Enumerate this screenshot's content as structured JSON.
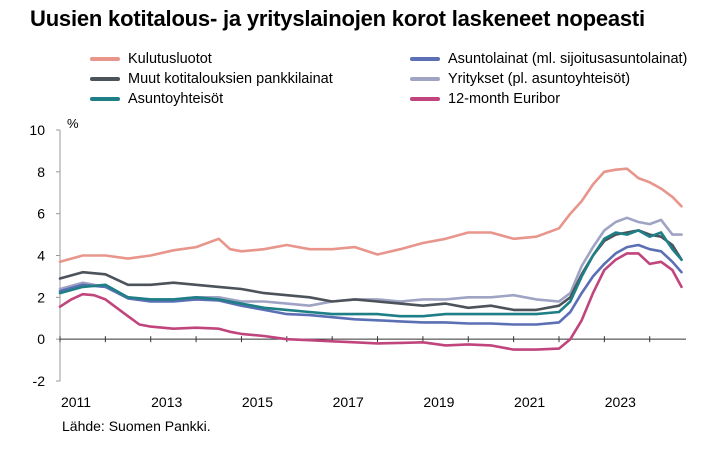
{
  "title": "Uusien kotitalous- ja yrityslainojen korot laskeneet nopeasti",
  "source": "Lähde: Suomen Pankki.",
  "chart_data": {
    "type": "line",
    "ylabel": "%",
    "ylim": [
      -2,
      10
    ],
    "yticks": [
      -2,
      0,
      2,
      4,
      6,
      8,
      10
    ],
    "xlim": [
      2011.0,
      2024.8
    ],
    "xticks": [
      "2011",
      "2013",
      "2015",
      "2017",
      "2019",
      "2021",
      "2023"
    ],
    "grid": false,
    "legend_position": "top",
    "series": [
      {
        "name": "Kulutusluotot",
        "color": "#e8958c",
        "points": [
          [
            2011.0,
            3.7
          ],
          [
            2011.5,
            4.0
          ],
          [
            2012.0,
            4.0
          ],
          [
            2012.5,
            3.85
          ],
          [
            2013.0,
            4.0
          ],
          [
            2013.5,
            4.25
          ],
          [
            2014.0,
            4.4
          ],
          [
            2014.5,
            4.8
          ],
          [
            2014.75,
            4.3
          ],
          [
            2015.0,
            4.2
          ],
          [
            2015.5,
            4.3
          ],
          [
            2016.0,
            4.5
          ],
          [
            2016.5,
            4.3
          ],
          [
            2017.0,
            4.3
          ],
          [
            2017.5,
            4.4
          ],
          [
            2018.0,
            4.05
          ],
          [
            2018.5,
            4.3
          ],
          [
            2019.0,
            4.6
          ],
          [
            2019.5,
            4.8
          ],
          [
            2020.0,
            5.1
          ],
          [
            2020.5,
            5.1
          ],
          [
            2021.0,
            4.8
          ],
          [
            2021.5,
            4.9
          ],
          [
            2022.0,
            5.3
          ],
          [
            2022.25,
            6.0
          ],
          [
            2022.5,
            6.6
          ],
          [
            2022.75,
            7.4
          ],
          [
            2023.0,
            8.0
          ],
          [
            2023.25,
            8.1
          ],
          [
            2023.5,
            8.15
          ],
          [
            2023.75,
            7.7
          ],
          [
            2024.0,
            7.5
          ],
          [
            2024.25,
            7.2
          ],
          [
            2024.5,
            6.8
          ],
          [
            2024.7,
            6.35
          ]
        ]
      },
      {
        "name": "Asuntolainat (ml. sijoitusasuntolainat)",
        "color": "#5b6fb5",
        "points": [
          [
            2011.0,
            2.3
          ],
          [
            2011.5,
            2.6
          ],
          [
            2012.0,
            2.5
          ],
          [
            2012.5,
            1.95
          ],
          [
            2013.0,
            1.8
          ],
          [
            2013.5,
            1.8
          ],
          [
            2014.0,
            1.9
          ],
          [
            2014.5,
            1.85
          ],
          [
            2015.0,
            1.6
          ],
          [
            2015.5,
            1.4
          ],
          [
            2016.0,
            1.2
          ],
          [
            2016.5,
            1.15
          ],
          [
            2017.0,
            1.05
          ],
          [
            2017.5,
            0.95
          ],
          [
            2018.0,
            0.9
          ],
          [
            2018.5,
            0.85
          ],
          [
            2019.0,
            0.8
          ],
          [
            2019.5,
            0.8
          ],
          [
            2020.0,
            0.75
          ],
          [
            2020.5,
            0.75
          ],
          [
            2021.0,
            0.7
          ],
          [
            2021.5,
            0.7
          ],
          [
            2022.0,
            0.8
          ],
          [
            2022.25,
            1.3
          ],
          [
            2022.5,
            2.2
          ],
          [
            2022.75,
            3.0
          ],
          [
            2023.0,
            3.6
          ],
          [
            2023.25,
            4.1
          ],
          [
            2023.5,
            4.4
          ],
          [
            2023.75,
            4.5
          ],
          [
            2024.0,
            4.3
          ],
          [
            2024.25,
            4.2
          ],
          [
            2024.5,
            3.7
          ],
          [
            2024.7,
            3.2
          ]
        ]
      },
      {
        "name": "Muut kotitalouksien pankkilainat",
        "color": "#4d535a",
        "points": [
          [
            2011.0,
            2.9
          ],
          [
            2011.5,
            3.2
          ],
          [
            2012.0,
            3.1
          ],
          [
            2012.5,
            2.6
          ],
          [
            2013.0,
            2.6
          ],
          [
            2013.5,
            2.7
          ],
          [
            2014.0,
            2.6
          ],
          [
            2014.5,
            2.5
          ],
          [
            2015.0,
            2.4
          ],
          [
            2015.5,
            2.2
          ],
          [
            2016.0,
            2.1
          ],
          [
            2016.5,
            2.0
          ],
          [
            2017.0,
            1.8
          ],
          [
            2017.5,
            1.9
          ],
          [
            2018.0,
            1.8
          ],
          [
            2018.5,
            1.7
          ],
          [
            2019.0,
            1.6
          ],
          [
            2019.5,
            1.7
          ],
          [
            2020.0,
            1.5
          ],
          [
            2020.5,
            1.6
          ],
          [
            2021.0,
            1.4
          ],
          [
            2021.5,
            1.4
          ],
          [
            2022.0,
            1.6
          ],
          [
            2022.25,
            2.0
          ],
          [
            2022.5,
            3.1
          ],
          [
            2022.75,
            4.0
          ],
          [
            2023.0,
            4.7
          ],
          [
            2023.25,
            5.0
          ],
          [
            2023.5,
            5.1
          ],
          [
            2023.75,
            5.2
          ],
          [
            2024.0,
            5.0
          ],
          [
            2024.25,
            4.9
          ],
          [
            2024.5,
            4.5
          ],
          [
            2024.7,
            3.8
          ]
        ]
      },
      {
        "name": "Yritykset (pl. asuntoyhteisöt)",
        "color": "#9fa3c4",
        "points": [
          [
            2011.0,
            2.4
          ],
          [
            2011.5,
            2.7
          ],
          [
            2012.0,
            2.5
          ],
          [
            2012.5,
            2.0
          ],
          [
            2013.0,
            1.9
          ],
          [
            2013.5,
            1.9
          ],
          [
            2014.0,
            2.0
          ],
          [
            2014.5,
            2.0
          ],
          [
            2015.0,
            1.8
          ],
          [
            2015.5,
            1.8
          ],
          [
            2016.0,
            1.7
          ],
          [
            2016.5,
            1.6
          ],
          [
            2017.0,
            1.8
          ],
          [
            2017.5,
            1.9
          ],
          [
            2018.0,
            1.9
          ],
          [
            2018.5,
            1.8
          ],
          [
            2019.0,
            1.9
          ],
          [
            2019.5,
            1.9
          ],
          [
            2020.0,
            2.0
          ],
          [
            2020.5,
            2.0
          ],
          [
            2021.0,
            2.1
          ],
          [
            2021.5,
            1.9
          ],
          [
            2022.0,
            1.8
          ],
          [
            2022.25,
            2.2
          ],
          [
            2022.5,
            3.5
          ],
          [
            2022.75,
            4.4
          ],
          [
            2023.0,
            5.2
          ],
          [
            2023.25,
            5.6
          ],
          [
            2023.5,
            5.8
          ],
          [
            2023.75,
            5.6
          ],
          [
            2024.0,
            5.5
          ],
          [
            2024.25,
            5.7
          ],
          [
            2024.5,
            5.0
          ],
          [
            2024.7,
            5.0
          ]
        ]
      },
      {
        "name": "Asuntoyhteisöt",
        "color": "#1e7f86",
        "points": [
          [
            2011.0,
            2.2
          ],
          [
            2011.5,
            2.5
          ],
          [
            2012.0,
            2.6
          ],
          [
            2012.5,
            2.0
          ],
          [
            2013.0,
            1.9
          ],
          [
            2013.5,
            1.9
          ],
          [
            2014.0,
            2.0
          ],
          [
            2014.5,
            1.9
          ],
          [
            2015.0,
            1.7
          ],
          [
            2015.5,
            1.5
          ],
          [
            2016.0,
            1.4
          ],
          [
            2016.5,
            1.3
          ],
          [
            2017.0,
            1.2
          ],
          [
            2017.5,
            1.2
          ],
          [
            2018.0,
            1.2
          ],
          [
            2018.5,
            1.1
          ],
          [
            2019.0,
            1.1
          ],
          [
            2019.5,
            1.2
          ],
          [
            2020.0,
            1.2
          ],
          [
            2020.5,
            1.2
          ],
          [
            2021.0,
            1.2
          ],
          [
            2021.5,
            1.2
          ],
          [
            2022.0,
            1.3
          ],
          [
            2022.25,
            1.8
          ],
          [
            2022.5,
            3.0
          ],
          [
            2022.75,
            4.0
          ],
          [
            2023.0,
            4.8
          ],
          [
            2023.25,
            5.1
          ],
          [
            2023.5,
            5.0
          ],
          [
            2023.75,
            5.2
          ],
          [
            2024.0,
            4.9
          ],
          [
            2024.25,
            5.1
          ],
          [
            2024.5,
            4.3
          ],
          [
            2024.7,
            3.8
          ]
        ]
      },
      {
        "name": "12-month Euribor",
        "color": "#c0457c",
        "points": [
          [
            2011.0,
            1.55
          ],
          [
            2011.25,
            1.9
          ],
          [
            2011.5,
            2.15
          ],
          [
            2011.75,
            2.1
          ],
          [
            2012.0,
            1.9
          ],
          [
            2012.25,
            1.5
          ],
          [
            2012.5,
            1.1
          ],
          [
            2012.75,
            0.7
          ],
          [
            2013.0,
            0.6
          ],
          [
            2013.5,
            0.5
          ],
          [
            2014.0,
            0.55
          ],
          [
            2014.5,
            0.5
          ],
          [
            2014.75,
            0.35
          ],
          [
            2015.0,
            0.25
          ],
          [
            2015.5,
            0.15
          ],
          [
            2016.0,
            0.0
          ],
          [
            2016.5,
            -0.05
          ],
          [
            2017.0,
            -0.1
          ],
          [
            2017.5,
            -0.15
          ],
          [
            2018.0,
            -0.2
          ],
          [
            2018.5,
            -0.18
          ],
          [
            2019.0,
            -0.15
          ],
          [
            2019.5,
            -0.3
          ],
          [
            2020.0,
            -0.25
          ],
          [
            2020.5,
            -0.3
          ],
          [
            2021.0,
            -0.5
          ],
          [
            2021.5,
            -0.5
          ],
          [
            2022.0,
            -0.45
          ],
          [
            2022.25,
            0.0
          ],
          [
            2022.5,
            0.9
          ],
          [
            2022.75,
            2.2
          ],
          [
            2023.0,
            3.3
          ],
          [
            2023.25,
            3.8
          ],
          [
            2023.5,
            4.1
          ],
          [
            2023.75,
            4.1
          ],
          [
            2024.0,
            3.6
          ],
          [
            2024.25,
            3.7
          ],
          [
            2024.5,
            3.3
          ],
          [
            2024.7,
            2.5
          ]
        ]
      }
    ]
  }
}
